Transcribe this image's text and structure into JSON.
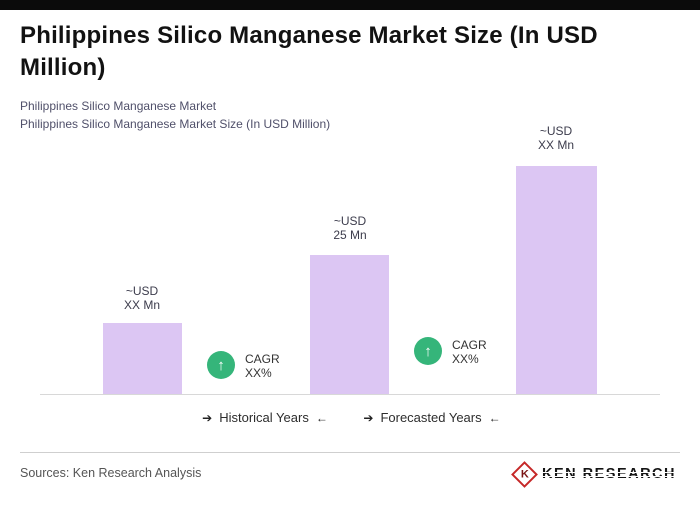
{
  "colors": {
    "accent_bar": "#0b0b0b",
    "bar_fill": "#dcc6f3",
    "badge_green": "#35b57a",
    "logo_red": "#c62828"
  },
  "header": {
    "title": "Philippines Silico Manganese Market Size (In USD Million)",
    "subtitle_line1": "Philippines Silico Manganese Market",
    "subtitle_line2": "Philippines Silico Manganese Market Size (In USD Million)"
  },
  "chart": {
    "bars": [
      {
        "label_line1": "~USD",
        "label_line2": "XX Mn"
      },
      {
        "label_line1": "~USD",
        "label_line2": "25 Mn"
      },
      {
        "label_line1": "~USD",
        "label_line2": "XX Mn"
      }
    ],
    "cagr_badges": [
      {
        "icon": "↑",
        "line1": "CAGR",
        "line2": "XX%"
      },
      {
        "icon": "↑",
        "line1": "CAGR",
        "line2": "XX%"
      }
    ],
    "axis": {
      "historical": {
        "left_icon": "➔",
        "label": "Historical Years",
        "right_icon": "←"
      },
      "forecasted": {
        "left_icon": "➔",
        "label": "Forecasted Years",
        "right_icon": "←"
      }
    }
  },
  "chart_data": {
    "type": "bar",
    "title": "Philippines Silico Manganese Market Size (In USD Million)",
    "ylabel": "USD Million",
    "categories": [
      "Historical Years (start)",
      "Historical Years (end)",
      "Forecasted Years"
    ],
    "bar_value_labels": [
      "~USD XX Mn",
      "~USD 25 Mn",
      "~USD XX Mn"
    ],
    "values_usd_mn": [
      null,
      25,
      null
    ],
    "estimated_values_usd_mn": [
      13,
      25,
      41
    ],
    "annotations": [
      {
        "text": "CAGR XX%",
        "between": [
          "bar1",
          "bar2"
        ]
      },
      {
        "text": "CAGR XX%",
        "between": [
          "bar2",
          "bar3"
        ]
      }
    ],
    "x_group_labels": [
      "Historical Years",
      "Forecasted Years"
    ],
    "legend": false,
    "grid": false
  },
  "footer": {
    "sources": "Sources: Ken Research Analysis",
    "logo_k": "K",
    "logo_text": "KEN RESEARCH"
  }
}
